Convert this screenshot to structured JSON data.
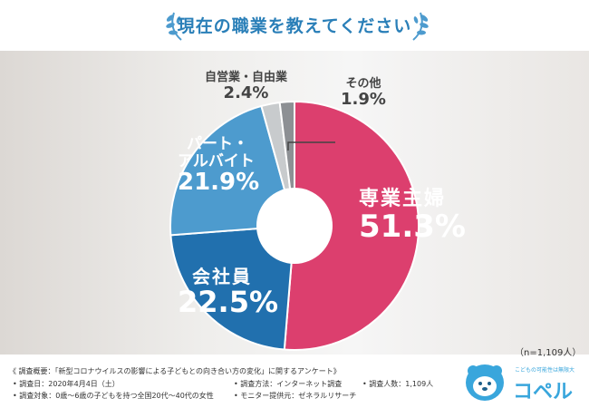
{
  "title": "現在の職業を教えてください",
  "chart_data": {
    "type": "pie",
    "donut": true,
    "slices": [
      {
        "label": "専業主婦",
        "value": 51.3,
        "display": "51.3%",
        "color": "#dc3f6e"
      },
      {
        "label": "会社員",
        "value": 22.5,
        "display": "22.5%",
        "color": "#2170ae"
      },
      {
        "label": "パート・アルバイト",
        "value": 21.9,
        "display": "21.9%",
        "color": "#4d9bce"
      },
      {
        "label": "自営業・自由業",
        "value": 2.4,
        "display": "2.4%",
        "color": "#c8cbcd"
      },
      {
        "label": "その他",
        "value": 1.9,
        "display": "1.9%",
        "color": "#8d9094"
      }
    ]
  },
  "labels": {
    "housewife": {
      "name": "専業主婦",
      "pct": "51.3%"
    },
    "employee": {
      "name": "会社員",
      "pct": "22.5%"
    },
    "parttime": {
      "name1": "パート・",
      "name2": "アルバイト",
      "pct": "21.9%"
    },
    "selfemployed": {
      "name": "自営業・自由業",
      "pct": "2.4%"
    },
    "other": {
      "name": "その他",
      "pct": "1.9%"
    }
  },
  "sample": "（n=1,109人）",
  "footer": {
    "overview": "《 調査概要：「新型コロナウイルスの影響による子どもとの向き合い方の変化」に関するアンケート》",
    "date": "• 調査日：2020年4月4日（土）",
    "method": "• 調査方法：インターネット調査",
    "count": "• 調査人数：1,109人",
    "target": "• 調査対象：0歳〜6歳の子どもを持つ全国20代〜40代の女性",
    "provider": "• モニター提供元：ゼネラルリサーチ"
  },
  "logo": {
    "name": "コペル",
    "tagline": "こどもの可能性は無限大"
  }
}
